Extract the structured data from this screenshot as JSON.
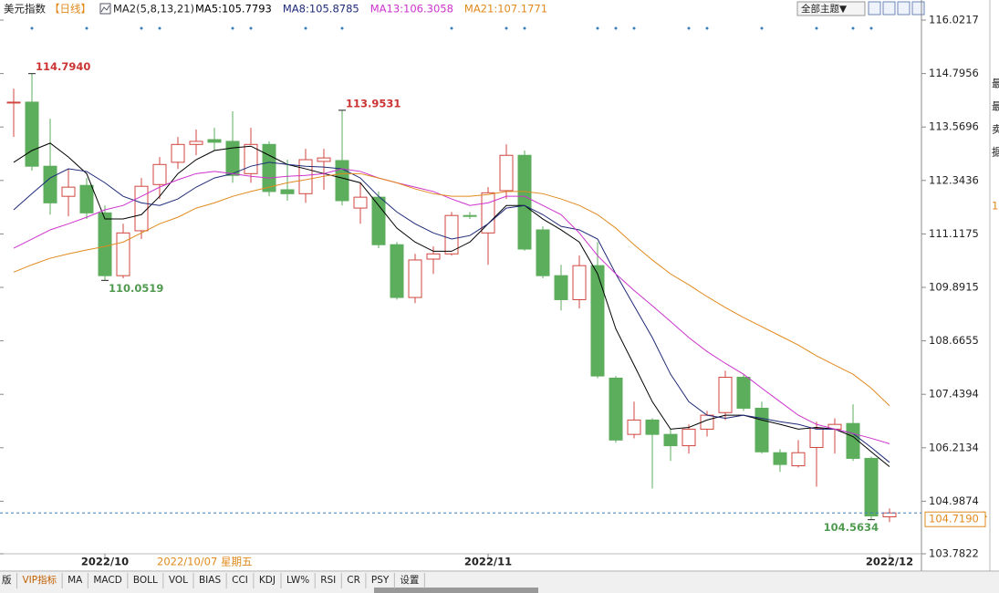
{
  "chart_data": {
    "type": "candlestick",
    "title": "美元指数",
    "period": "【日线】",
    "indicator": "MA2(5,8,13,21)",
    "theme_button": "全部主题▼",
    "cursor_date": "2022/10/07 星期五",
    "categories": [
      null,
      null,
      null,
      null,
      null,
      "2022/10",
      null,
      null,
      null,
      null,
      null,
      null,
      null,
      null,
      null,
      null,
      null,
      null,
      null,
      null,
      null,
      null,
      null,
      null,
      null,
      null,
      "2022/11",
      null,
      null,
      null,
      null,
      null,
      null,
      null,
      null,
      null,
      null,
      null,
      null,
      null,
      null,
      null,
      null,
      null,
      null,
      null,
      null,
      null,
      "2022/12"
    ],
    "open": [
      114.12,
      114.14,
      112.67,
      111.98,
      112.23,
      111.6,
      110.16,
      111.19,
      112.25,
      112.76,
      113.17,
      113.28,
      113.24,
      112.5,
      113.17,
      112.13,
      112.04,
      112.78,
      112.8,
      111.71,
      111.96,
      110.87,
      109.66,
      110.54,
      110.66,
      111.54,
      111.14,
      112.11,
      112.92,
      111.21,
      110.16,
      109.61,
      110.39,
      107.81,
      106.52,
      106.85,
      106.52,
      106.26,
      106.64,
      107.02,
      107.83,
      107.12,
      106.1,
      105.8,
      106.22,
      106.64,
      106.77,
      105.97,
      104.63
    ],
    "high": [
      114.45,
      114.794,
      113.76,
      112.61,
      112.4,
      111.77,
      111.35,
      112.4,
      112.88,
      113.34,
      113.51,
      113.55,
      113.93,
      113.55,
      113.24,
      112.82,
      113.07,
      113.07,
      113.9531,
      112.29,
      112.09,
      110.93,
      110.66,
      110.83,
      111.62,
      111.62,
      112.19,
      113.17,
      113.03,
      111.29,
      110.41,
      110.62,
      110.93,
      107.86,
      107.27,
      106.89,
      106.64,
      106.75,
      107.06,
      107.98,
      107.9,
      107.27,
      106.18,
      106.39,
      106.81,
      106.89,
      107.21,
      106.01,
      104.82
    ],
    "low": [
      113.34,
      112.57,
      111.56,
      111.52,
      111.46,
      110.0519,
      110.1,
      111.0,
      111.92,
      112.61,
      112.92,
      113.03,
      112.29,
      112.29,
      111.98,
      111.88,
      111.83,
      112.13,
      111.77,
      111.35,
      110.79,
      109.61,
      109.53,
      110.2,
      110.62,
      111.46,
      110.41,
      111.92,
      110.73,
      110.1,
      109.36,
      109.41,
      107.81,
      106.33,
      106.43,
      105.28,
      105.91,
      106.08,
      106.47,
      106.85,
      107.06,
      106.08,
      105.66,
      105.76,
      105.32,
      106.08,
      105.91,
      104.5634,
      104.51
    ],
    "close": [
      114.14,
      112.67,
      111.83,
      112.19,
      111.6,
      110.16,
      111.14,
      112.21,
      112.71,
      113.17,
      113.24,
      113.22,
      112.46,
      113.17,
      112.09,
      112.04,
      112.82,
      112.86,
      111.88,
      111.96,
      110.87,
      109.66,
      110.52,
      110.66,
      111.54,
      111.52,
      112.06,
      112.92,
      110.77,
      110.16,
      109.61,
      110.39,
      107.86,
      106.39,
      106.85,
      106.52,
      106.26,
      106.64,
      106.96,
      107.83,
      107.12,
      106.12,
      105.83,
      106.1,
      106.66,
      106.75,
      105.97,
      104.65,
      104.719
    ],
    "up_color": "#d0453f",
    "down_color": "#5cad5c",
    "series": [
      {
        "name": "MA5:105.7793",
        "color": "#000000",
        "values": [
          112.76,
          113.03,
          113.2,
          112.88,
          112.5,
          111.46,
          111.46,
          111.56,
          111.98,
          112.5,
          112.82,
          113.03,
          113.09,
          113.13,
          112.92,
          112.71,
          112.61,
          112.5,
          112.4,
          112.29,
          111.77,
          111.25,
          110.93,
          110.72,
          110.72,
          110.93,
          111.35,
          111.77,
          111.77,
          111.46,
          111.21,
          110.93,
          110.2,
          108.94,
          108.11,
          107.27,
          106.64,
          106.68,
          106.85,
          106.96,
          106.96,
          106.85,
          106.75,
          106.64,
          106.68,
          106.64,
          106.47,
          106.12,
          105.7793
        ]
      },
      {
        "name": "MA8:105.8785",
        "color": "#1e2a78",
        "values": [
          111.67,
          112.04,
          112.4,
          112.61,
          112.55,
          112.29,
          111.98,
          111.83,
          111.77,
          111.92,
          112.19,
          112.4,
          112.5,
          112.67,
          112.76,
          112.71,
          112.67,
          112.65,
          112.61,
          112.4,
          111.98,
          111.62,
          111.35,
          111.14,
          111.0,
          111.08,
          111.35,
          111.71,
          111.77,
          111.56,
          111.29,
          111.21,
          111.0,
          110.2,
          109.47,
          108.74,
          107.9,
          107.27,
          106.96,
          106.89,
          106.96,
          106.89,
          106.81,
          106.75,
          106.64,
          106.64,
          106.54,
          106.22,
          105.8785
        ]
      },
      {
        "name": "MA13:106.3058",
        "color": "#cc33cc",
        "values": [
          110.79,
          111.0,
          111.21,
          111.35,
          111.5,
          111.67,
          111.77,
          111.98,
          112.19,
          112.36,
          112.5,
          112.55,
          112.5,
          112.44,
          112.4,
          112.44,
          112.46,
          112.5,
          112.61,
          112.55,
          112.4,
          112.29,
          112.19,
          112.09,
          111.92,
          111.77,
          111.83,
          111.98,
          111.98,
          111.77,
          111.56,
          111.14,
          110.62,
          110.2,
          109.82,
          109.47,
          109.11,
          108.74,
          108.42,
          108.15,
          107.9,
          107.58,
          107.27,
          106.96,
          106.75,
          106.64,
          106.54,
          106.43,
          106.3058
        ]
      },
      {
        "name": "MA21:107.1771",
        "color": "#e08a1e",
        "values": [
          110.24,
          110.41,
          110.56,
          110.66,
          110.75,
          110.83,
          110.93,
          111.14,
          111.35,
          111.5,
          111.71,
          111.83,
          111.98,
          112.09,
          112.19,
          112.29,
          112.36,
          112.44,
          112.5,
          112.5,
          112.4,
          112.29,
          112.15,
          112.04,
          111.98,
          111.98,
          112.02,
          112.09,
          112.09,
          112.04,
          111.92,
          111.77,
          111.56,
          111.25,
          110.87,
          110.52,
          110.2,
          109.95,
          109.68,
          109.43,
          109.2,
          108.99,
          108.78,
          108.57,
          108.32,
          108.11,
          107.9,
          107.58,
          107.1771
        ]
      }
    ],
    "annotations": [
      {
        "value": 114.794,
        "label": "114.7940"
      },
      {
        "value": 110.0519,
        "label": "110.0519"
      },
      {
        "value": 113.9531,
        "label": "113.9531"
      },
      {
        "value": 104.5634,
        "label": "104.5634"
      }
    ],
    "last_price": {
      "value": 104.719,
      "label": "104.7190"
    },
    "ylim": [
      103.7822,
      116.0217
    ],
    "yticks": [
      116.0217,
      114.7956,
      113.5696,
      112.3436,
      111.1175,
      109.8915,
      108.6655,
      107.4394,
      106.2134,
      104.9874,
      103.7822
    ]
  },
  "toolbar": [
    "版",
    "VIP指标",
    "MA",
    "MACD",
    "BOLL",
    "VOL",
    "BIAS",
    "CCI",
    "KDJ",
    "LW%",
    "RSI",
    "CR",
    "PSY",
    "设置"
  ],
  "side_panel": [
    "最",
    "最",
    "卖",
    "据",
    "1"
  ]
}
